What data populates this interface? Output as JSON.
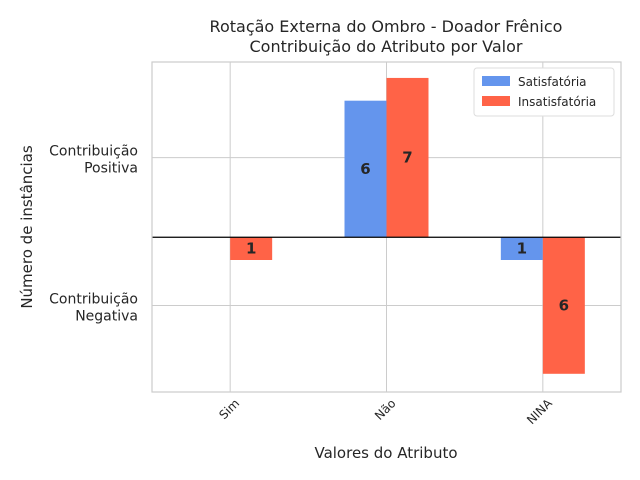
{
  "chart_data": {
    "type": "bar",
    "title": [
      "Rotação Externa do Ombro - Doador Frênico",
      "Contribuição do Atributo por Valor"
    ],
    "xlabel": "Valores do Atributo",
    "ylabel": "Número de instâncias",
    "yticklabels": [
      {
        "value": 3.5,
        "lines": [
          "Contribuição",
          "Positiva"
        ]
      },
      {
        "value": -3,
        "lines": [
          "Contribuição",
          "Negativa"
        ]
      }
    ],
    "ylim": [
      -6.8,
      7.7
    ],
    "categories": [
      "Sim",
      "Não",
      "NINA"
    ],
    "series": [
      {
        "name": "Satisfatória",
        "color": "#6495ED",
        "values": [
          0,
          6,
          -1
        ],
        "labels": [
          "",
          "6",
          "1"
        ]
      },
      {
        "name": "Insatisfatória",
        "color": "#FF6347",
        "values": [
          -1,
          7,
          -6
        ],
        "labels": [
          "1",
          "7",
          "6"
        ]
      }
    ],
    "grid": true,
    "legend": "top-right"
  }
}
